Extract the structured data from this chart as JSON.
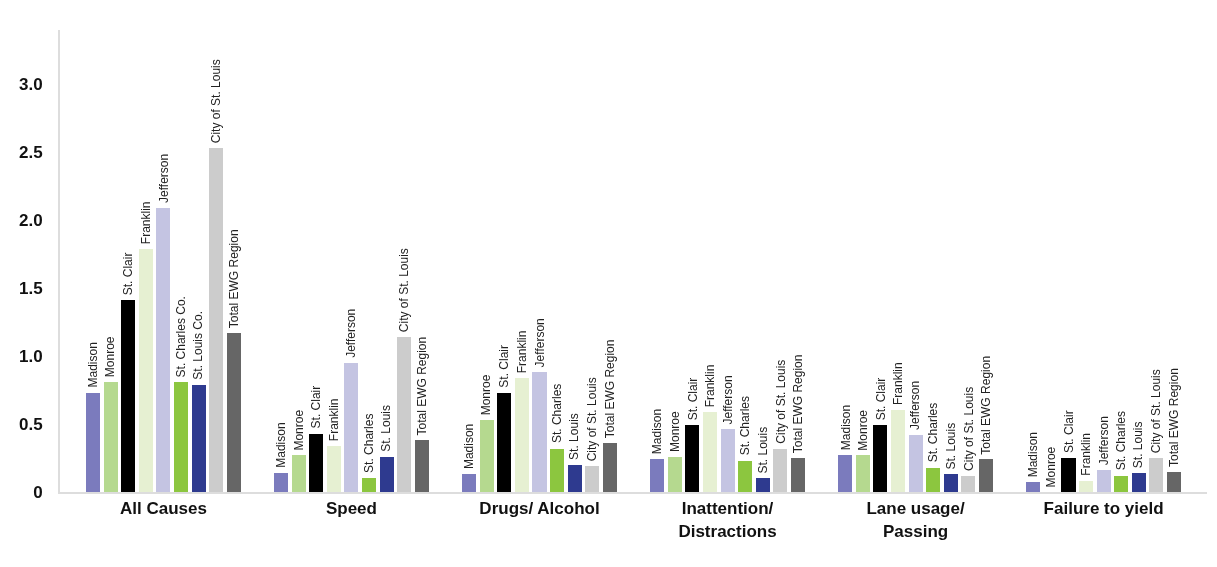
{
  "chart_data": {
    "type": "bar",
    "categories": [
      "All Causes",
      "Speed",
      "Drugs/ Alcohol",
      "Inattention/\nDistractions",
      "Lane usage/\nPassing",
      "Failure to yield"
    ],
    "ylim": [
      0,
      3.4
    ],
    "yticks": [
      {
        "value": 0,
        "label": "0"
      },
      0.5,
      {
        "value": 1,
        "label": "1.0"
      },
      1.5,
      {
        "value": 2,
        "label": "2.0"
      },
      2.5,
      {
        "value": 3,
        "label": "3.0"
      }
    ],
    "legend": false,
    "series": [
      {
        "color": "#7b7bbd",
        "values": [
          0.73,
          0.14,
          0.13,
          0.24,
          0.27,
          0.07
        ]
      },
      {
        "color": "#b5d98f",
        "values": [
          0.81,
          0.27,
          0.53,
          0.26,
          0.27,
          0.0
        ]
      },
      {
        "color": "#000000",
        "values": [
          1.41,
          0.43,
          0.73,
          0.49,
          0.49,
          0.25
        ]
      },
      {
        "color": "#e6f0d2",
        "values": [
          1.79,
          0.34,
          0.84,
          0.59,
          0.6,
          0.08
        ]
      },
      {
        "color": "#c4c4e2",
        "values": [
          2.09,
          0.95,
          0.88,
          0.46,
          0.42,
          0.16
        ]
      },
      {
        "color": "#8cc63f",
        "values": [
          0.81,
          0.1,
          0.32,
          0.23,
          0.18,
          0.12
        ]
      },
      {
        "color": "#2e3a8f",
        "values": [
          0.79,
          0.26,
          0.2,
          0.1,
          0.13,
          0.14
        ]
      },
      {
        "color": "#cccccc",
        "values": [
          2.53,
          1.14,
          0.19,
          0.32,
          0.12,
          0.25
        ]
      },
      {
        "color": "#666666",
        "values": [
          1.17,
          0.38,
          0.36,
          0.25,
          0.24,
          0.15
        ]
      }
    ],
    "annotations": [
      "Madison",
      "Monroe",
      "St. Clair",
      "Franklin",
      "Jefferson",
      "St. Charles Co.",
      "St. Louis Co.",
      "City of St. Louis",
      "Total EWG Region",
      "Madison",
      "Monroe",
      "St. Clair",
      "Franklin",
      "Jefferson",
      "St. Charles",
      "St. Louis",
      "City of St. Louis",
      "Total EWG Region",
      "Madison",
      "Monroe",
      "St. Clair",
      "Franklin",
      "Jefferson",
      "St. Charles",
      "St. Louis",
      "City of St. Louis",
      "Total EWG Region",
      "Madison",
      "Monroe",
      "St. Clair",
      "Franklin",
      "Jefferson",
      "St. Charles",
      "St. Louis",
      "City of St. Louis",
      "Total EWG Region",
      "Madison",
      "Monroe",
      "St. Clair",
      "Franklin",
      "Jefferson",
      "St. Charles",
      "St. Louis",
      "City of St. Louis",
      "Total EWG Region",
      "Madison",
      "Monroe",
      "St. Clair",
      "Franklin",
      "Jefferson",
      "St. Charles",
      "St. Louis",
      "City of St. Louis",
      "Total EWG Region"
    ]
  }
}
